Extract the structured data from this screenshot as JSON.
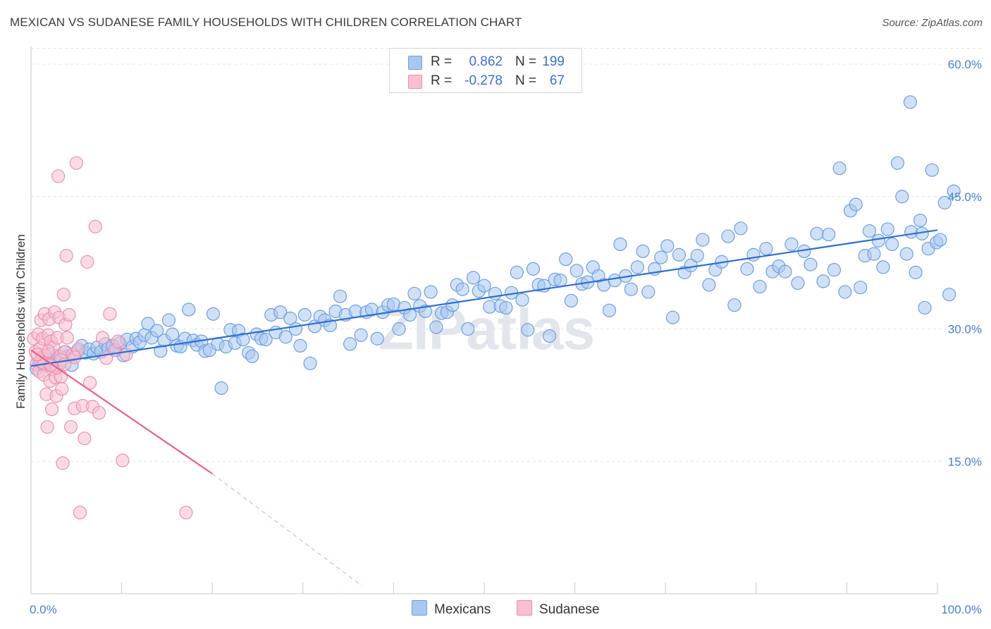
{
  "title": "MEXICAN VS SUDANESE FAMILY HOUSEHOLDS WITH CHILDREN CORRELATION CHART",
  "source": "Source: ZipAtlas.com",
  "watermark": "ZIPatlas",
  "legend": {
    "rows": [
      {
        "r_label": "R =",
        "r_value": "0.862",
        "n_label": "N =",
        "n_value": "199",
        "color": "#a9c8f0",
        "border": "#6d9ee2"
      },
      {
        "r_label": "R =",
        "r_value": "-0.278",
        "n_label": "N =",
        "n_value": "67",
        "color": "#f7bfd1",
        "border": "#ec8fae"
      }
    ]
  },
  "bottom_legend": [
    {
      "label": "Mexicans",
      "color": "#a9c8f0",
      "border": "#6d9ee2"
    },
    {
      "label": "Sudanese",
      "color": "#f7bfd1",
      "border": "#ec8fae"
    }
  ],
  "chart_data": {
    "type": "scatter",
    "title": "MEXICAN VS SUDANESE FAMILY HOUSEHOLDS WITH CHILDREN CORRELATION CHART",
    "xlabel": "",
    "ylabel": "Family Households with Children",
    "xlim": [
      0,
      100
    ],
    "ylim": [
      0,
      60
    ],
    "x_tick_labels": [
      "0.0%",
      "100.0%"
    ],
    "y_ticks": [
      15,
      30,
      45,
      60
    ],
    "y_tick_labels": [
      "15.0%",
      "30.0%",
      "45.0%",
      "60.0%"
    ],
    "grid": true,
    "series": [
      {
        "name": "Mexicans",
        "color": "#6d9ee2",
        "fill": "#a9c8f0",
        "trend": {
          "x0": 0,
          "y0": 25.8,
          "x1": 100,
          "y1": 41.2,
          "color": "#2b6fd3"
        },
        "points": [
          [
            0.6,
            25.5
          ],
          [
            0.9,
            26.2
          ],
          [
            1.2,
            26.8
          ],
          [
            1.4,
            25.9
          ],
          [
            1.7,
            26.5
          ],
          [
            2.0,
            27.1
          ],
          [
            2.3,
            26.0
          ],
          [
            2.6,
            26.4
          ],
          [
            2.9,
            27.0
          ],
          [
            3.2,
            26.1
          ],
          [
            3.8,
            27.4
          ],
          [
            4.1,
            26.9
          ],
          [
            4.5,
            25.9
          ],
          [
            5.2,
            27.5
          ],
          [
            5.6,
            28.1
          ],
          [
            6.0,
            27.3
          ],
          [
            6.4,
            27.7
          ],
          [
            6.9,
            27.2
          ],
          [
            7.3,
            27.9
          ],
          [
            7.7,
            27.4
          ],
          [
            8.2,
            28.3
          ],
          [
            8.5,
            27.8
          ],
          [
            9.0,
            28.1
          ],
          [
            9.4,
            27.6
          ],
          [
            9.8,
            28.4
          ],
          [
            10.2,
            27.0
          ],
          [
            10.6,
            28.8
          ],
          [
            11.2,
            28.0
          ],
          [
            11.6,
            28.9
          ],
          [
            12.0,
            28.5
          ],
          [
            12.5,
            29.3
          ],
          [
            12.9,
            30.6
          ],
          [
            13.3,
            29.0
          ],
          [
            13.9,
            29.8
          ],
          [
            14.3,
            27.5
          ],
          [
            14.7,
            28.7
          ],
          [
            15.2,
            31.0
          ],
          [
            15.6,
            29.4
          ],
          [
            16.1,
            28.1
          ],
          [
            16.5,
            28.0
          ],
          [
            17.0,
            28.9
          ],
          [
            17.4,
            32.2
          ],
          [
            17.9,
            28.7
          ],
          [
            18.3,
            28.2
          ],
          [
            18.8,
            28.6
          ],
          [
            19.2,
            27.5
          ],
          [
            19.7,
            27.6
          ],
          [
            20.1,
            31.7
          ],
          [
            20.6,
            28.3
          ],
          [
            21.0,
            23.3
          ],
          [
            21.5,
            28.0
          ],
          [
            22.0,
            29.9
          ],
          [
            22.5,
            28.4
          ],
          [
            22.9,
            29.8
          ],
          [
            23.4,
            28.8
          ],
          [
            24.0,
            27.3
          ],
          [
            24.4,
            26.9
          ],
          [
            24.9,
            29.4
          ],
          [
            25.4,
            28.9
          ],
          [
            25.9,
            28.8
          ],
          [
            26.5,
            31.6
          ],
          [
            27.0,
            29.6
          ],
          [
            27.5,
            31.9
          ],
          [
            28.1,
            29.1
          ],
          [
            28.6,
            31.2
          ],
          [
            29.2,
            30.0
          ],
          [
            29.7,
            28.1
          ],
          [
            30.2,
            31.6
          ],
          [
            30.8,
            26.1
          ],
          [
            31.3,
            30.3
          ],
          [
            31.9,
            31.4
          ],
          [
            32.4,
            31.0
          ],
          [
            33.0,
            30.4
          ],
          [
            33.6,
            32.0
          ],
          [
            34.1,
            33.7
          ],
          [
            34.7,
            31.6
          ],
          [
            35.2,
            28.3
          ],
          [
            35.8,
            32.0
          ],
          [
            36.4,
            29.3
          ],
          [
            37.0,
            31.9
          ],
          [
            37.6,
            32.2
          ],
          [
            38.2,
            28.9
          ],
          [
            38.8,
            31.9
          ],
          [
            39.4,
            32.7
          ],
          [
            40.0,
            32.8
          ],
          [
            40.6,
            30.0
          ],
          [
            41.2,
            32.4
          ],
          [
            41.8,
            31.6
          ],
          [
            42.3,
            34.0
          ],
          [
            42.9,
            32.6
          ],
          [
            43.5,
            32.0
          ],
          [
            44.1,
            34.2
          ],
          [
            44.7,
            30.2
          ],
          [
            45.3,
            31.8
          ],
          [
            45.9,
            31.9
          ],
          [
            46.5,
            32.7
          ],
          [
            47.0,
            35.0
          ],
          [
            47.6,
            34.5
          ],
          [
            48.2,
            30.0
          ],
          [
            48.8,
            35.8
          ],
          [
            49.4,
            34.3
          ],
          [
            50.0,
            34.9
          ],
          [
            50.6,
            32.5
          ],
          [
            51.2,
            34.0
          ],
          [
            51.8,
            32.6
          ],
          [
            52.4,
            32.4
          ],
          [
            53.0,
            34.1
          ],
          [
            53.6,
            36.4
          ],
          [
            54.2,
            33.3
          ],
          [
            54.8,
            29.9
          ],
          [
            55.4,
            36.8
          ],
          [
            56.0,
            35.0
          ],
          [
            56.6,
            34.9
          ],
          [
            57.2,
            29.2
          ],
          [
            57.8,
            35.6
          ],
          [
            58.4,
            35.5
          ],
          [
            59.0,
            37.9
          ],
          [
            59.6,
            33.2
          ],
          [
            60.2,
            36.6
          ],
          [
            60.8,
            35.1
          ],
          [
            61.4,
            35.3
          ],
          [
            62.0,
            37.0
          ],
          [
            62.6,
            36.0
          ],
          [
            63.2,
            35.0
          ],
          [
            63.8,
            32.1
          ],
          [
            64.4,
            35.5
          ],
          [
            65.0,
            39.6
          ],
          [
            65.6,
            36.0
          ],
          [
            66.2,
            34.5
          ],
          [
            66.9,
            37.0
          ],
          [
            67.5,
            38.8
          ],
          [
            68.1,
            34.2
          ],
          [
            68.8,
            36.8
          ],
          [
            69.5,
            38.1
          ],
          [
            70.2,
            39.4
          ],
          [
            70.8,
            31.3
          ],
          [
            71.5,
            38.4
          ],
          [
            72.1,
            36.4
          ],
          [
            72.8,
            37.2
          ],
          [
            73.5,
            38.3
          ],
          [
            74.1,
            40.1
          ],
          [
            74.8,
            35.0
          ],
          [
            75.5,
            36.7
          ],
          [
            76.2,
            37.6
          ],
          [
            76.9,
            40.5
          ],
          [
            77.6,
            32.7
          ],
          [
            78.3,
            41.4
          ],
          [
            79.0,
            36.8
          ],
          [
            79.7,
            38.4
          ],
          [
            80.4,
            34.8
          ],
          [
            81.1,
            39.1
          ],
          [
            81.8,
            36.5
          ],
          [
            82.5,
            37.1
          ],
          [
            83.2,
            36.5
          ],
          [
            83.9,
            39.6
          ],
          [
            84.6,
            35.2
          ],
          [
            85.3,
            38.8
          ],
          [
            86.0,
            37.3
          ],
          [
            86.7,
            40.8
          ],
          [
            87.4,
            35.4
          ],
          [
            88.0,
            40.7
          ],
          [
            88.6,
            36.7
          ],
          [
            89.2,
            48.2
          ],
          [
            89.8,
            34.2
          ],
          [
            90.4,
            43.4
          ],
          [
            91.0,
            44.1
          ],
          [
            91.5,
            34.7
          ],
          [
            92.0,
            38.3
          ],
          [
            92.5,
            41.1
          ],
          [
            93.0,
            38.5
          ],
          [
            93.5,
            40.0
          ],
          [
            94.0,
            37.0
          ],
          [
            94.5,
            41.3
          ],
          [
            95.0,
            39.6
          ],
          [
            95.6,
            48.8
          ],
          [
            96.1,
            45.0
          ],
          [
            96.6,
            38.5
          ],
          [
            97.1,
            41.0
          ],
          [
            97.6,
            36.4
          ],
          [
            98.1,
            42.3
          ],
          [
            98.6,
            32.4
          ],
          [
            99.0,
            39.1
          ],
          [
            99.4,
            48.0
          ],
          [
            99.9,
            39.8
          ],
          [
            100.3,
            40.1
          ],
          [
            100.8,
            44.3
          ],
          [
            101.3,
            33.9
          ],
          [
            101.8,
            45.6
          ],
          [
            97.0,
            55.7
          ],
          [
            98.3,
            40.8
          ]
        ]
      },
      {
        "name": "Sudanese",
        "color": "#ec8fae",
        "fill": "#f7bfd1",
        "trend": {
          "x0": 0,
          "y0": 27.6,
          "x1": 20,
          "y1": 13.6,
          "x_dash_end": 36.5,
          "y_dash_end": 0.9,
          "color": "#e8608c"
        },
        "points": [
          [
            0.3,
            28.9
          ],
          [
            0.5,
            27.4
          ],
          [
            0.6,
            26.0
          ],
          [
            0.8,
            29.4
          ],
          [
            0.9,
            25.2
          ],
          [
            1.0,
            27.8
          ],
          [
            1.1,
            31.0
          ],
          [
            1.2,
            26.8
          ],
          [
            1.3,
            28.9
          ],
          [
            1.4,
            24.8
          ],
          [
            1.5,
            31.7
          ],
          [
            1.6,
            27.0
          ],
          [
            1.7,
            22.6
          ],
          [
            1.8,
            18.9
          ],
          [
            1.9,
            29.3
          ],
          [
            2.0,
            31.1
          ],
          [
            2.1,
            24.1
          ],
          [
            2.2,
            28.6
          ],
          [
            2.3,
            20.9
          ],
          [
            2.4,
            25.4
          ],
          [
            2.5,
            27.9
          ],
          [
            2.6,
            31.9
          ],
          [
            2.7,
            24.5
          ],
          [
            2.8,
            22.4
          ],
          [
            2.9,
            29.0
          ],
          [
            3.0,
            47.3
          ],
          [
            3.1,
            31.3
          ],
          [
            3.2,
            26.9
          ],
          [
            3.3,
            24.6
          ],
          [
            3.4,
            23.2
          ],
          [
            3.5,
            14.8
          ],
          [
            3.6,
            33.9
          ],
          [
            3.7,
            27.4
          ],
          [
            3.8,
            30.5
          ],
          [
            3.9,
            38.3
          ],
          [
            4.0,
            29.0
          ],
          [
            4.2,
            31.6
          ],
          [
            4.4,
            18.9
          ],
          [
            4.6,
            27.1
          ],
          [
            4.8,
            21.0
          ],
          [
            5.0,
            48.8
          ],
          [
            5.2,
            27.7
          ],
          [
            5.4,
            9.2
          ],
          [
            5.7,
            21.3
          ],
          [
            5.9,
            17.6
          ],
          [
            6.2,
            37.6
          ],
          [
            6.5,
            23.9
          ],
          [
            6.8,
            21.2
          ],
          [
            7.1,
            41.6
          ],
          [
            7.5,
            20.5
          ],
          [
            7.9,
            29.0
          ],
          [
            8.3,
            26.7
          ],
          [
            8.7,
            31.7
          ],
          [
            9.2,
            27.6
          ],
          [
            9.6,
            28.6
          ],
          [
            10.1,
            15.1
          ],
          [
            10.5,
            27.1
          ],
          [
            1.1,
            26.3
          ],
          [
            1.4,
            26.1
          ],
          [
            2.8,
            25.6
          ],
          [
            3.3,
            26.5
          ],
          [
            0.7,
            27.1
          ],
          [
            1.9,
            27.5
          ],
          [
            3.7,
            26.0
          ],
          [
            17.1,
            9.2
          ],
          [
            4.8,
            26.8
          ],
          [
            2.2,
            25.9
          ]
        ]
      }
    ]
  }
}
